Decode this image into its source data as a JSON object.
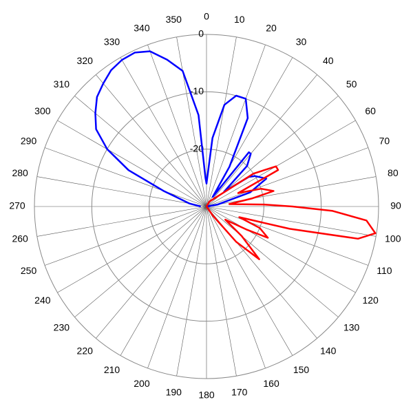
{
  "chart_data": {
    "type": "polar",
    "rlim": [
      -30,
      0
    ],
    "rticks": [
      -20,
      -10,
      0
    ],
    "thetaticks": [
      0,
      10,
      20,
      30,
      40,
      50,
      60,
      70,
      80,
      90,
      100,
      110,
      120,
      130,
      140,
      150,
      160,
      170,
      180,
      190,
      200,
      210,
      220,
      230,
      240,
      250,
      260,
      270,
      280,
      290,
      300,
      310,
      320,
      330,
      340,
      350
    ],
    "grid": true,
    "series": [
      {
        "color": "#0000ff",
        "theta": [
          90,
          80,
          72,
          65,
          58,
          55,
          50,
          45,
          40,
          38,
          33,
          30,
          25,
          20,
          15,
          10,
          5,
          0,
          358,
          355,
          350,
          345,
          340,
          335,
          330,
          325,
          320,
          315,
          310,
          305,
          300,
          295,
          290,
          280,
          270
        ],
        "values": [
          -30,
          -28,
          -22,
          -18.5,
          -20,
          -21,
          -26,
          -20,
          -18,
          -18,
          -28,
          -22,
          -13,
          -10,
          -10,
          -12,
          -18,
          -26,
          -25,
          -14,
          -6,
          -3.5,
          -1.2,
          -0.4,
          -0.5,
          -1,
          -2,
          -3,
          -4.7,
          -6.5,
          -10,
          -15,
          -22,
          -27,
          -29
        ]
      },
      {
        "color": "#ff0000",
        "theta": [
          0,
          30,
          55,
          60,
          63,
          67,
          72,
          77,
          80,
          84,
          88,
          90,
          92,
          95,
          99,
          102,
          105,
          108,
          112,
          117,
          120,
          125,
          130,
          135,
          140,
          145,
          160,
          270
        ],
        "values": [
          -30,
          -29,
          -20,
          -16,
          -16,
          -24,
          -20,
          -18,
          -22,
          -26,
          -20,
          -15,
          -8,
          -2,
          -0.2,
          -3,
          -15,
          -24,
          -20,
          -18,
          -22,
          -26,
          -22,
          -17,
          -22,
          -28,
          -30,
          -30
        ]
      }
    ]
  }
}
